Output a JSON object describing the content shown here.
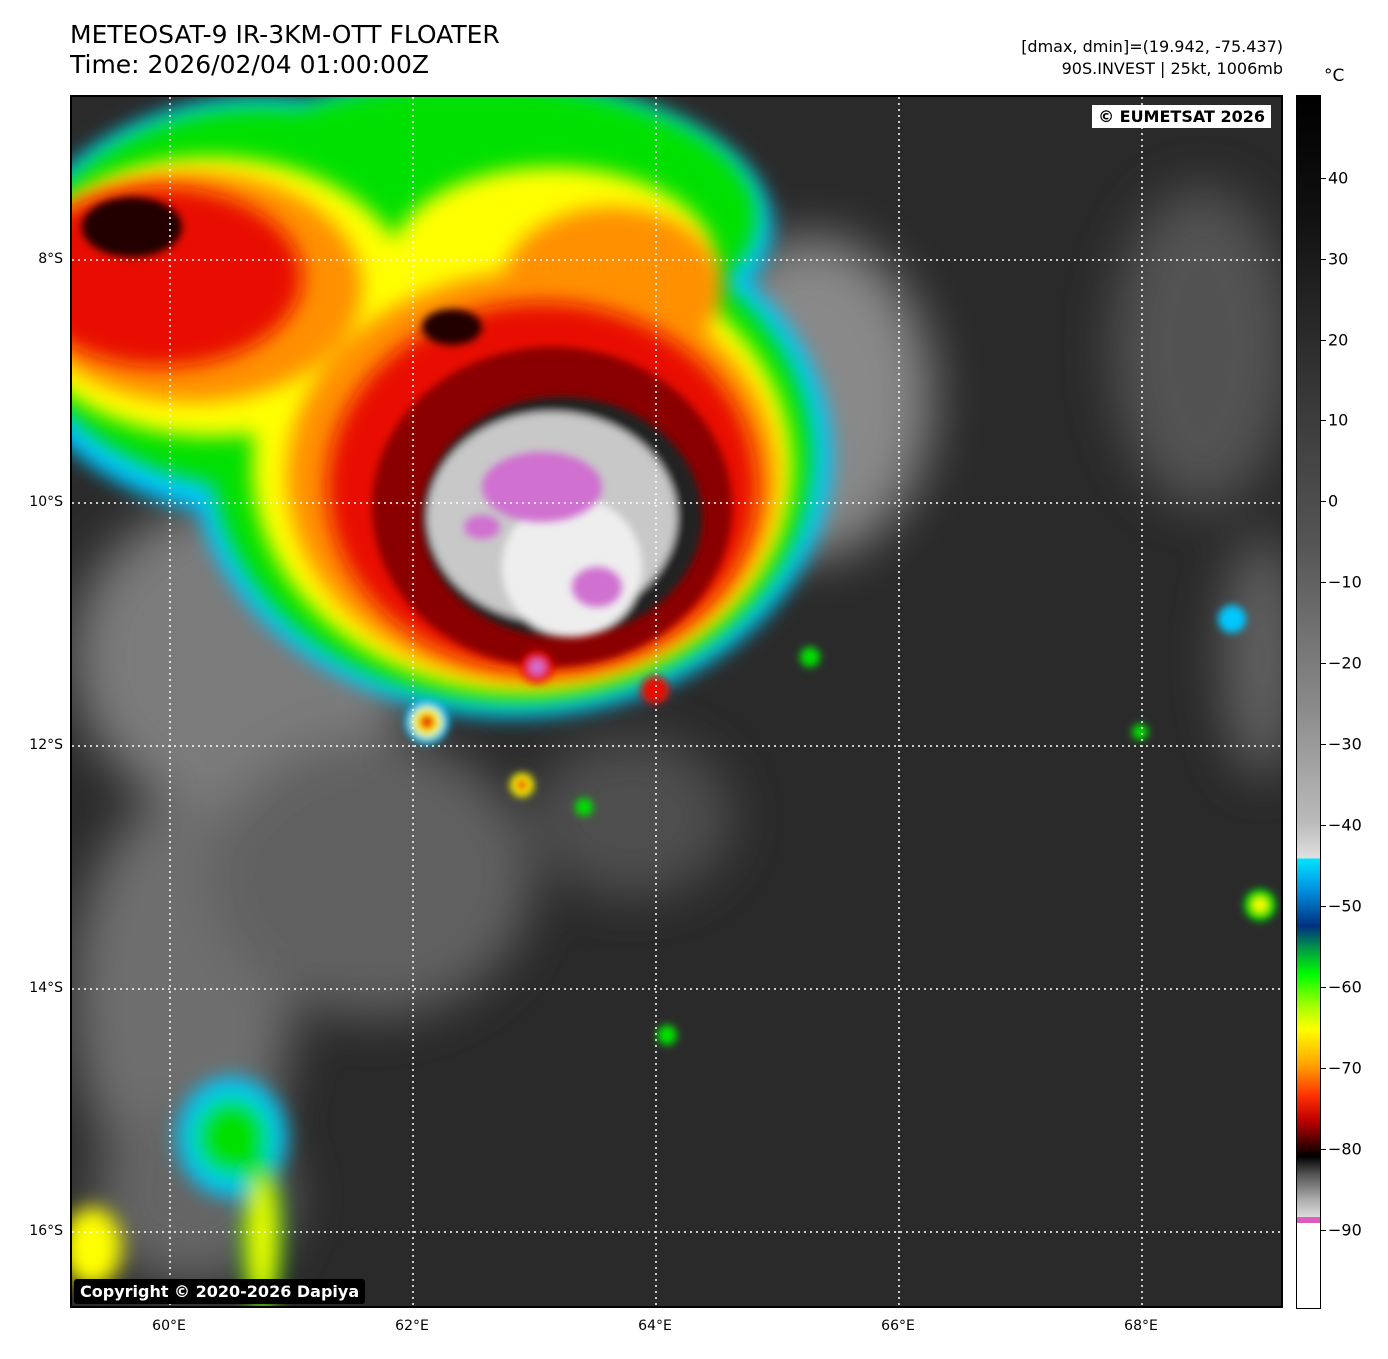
{
  "title": {
    "line1": "METEOSAT-9 IR-3KM-OTT FLOATER",
    "line2": "Time: 2026/02/04 01:00:00Z"
  },
  "info": {
    "line1": "[dmax, dmin]=(19.942, -75.437)",
    "line2": "90S.INVEST | 25kt, 1006mb"
  },
  "badges": {
    "eumetsat": "© EUMETSAT 2026",
    "copyright": "Copyright © 2020-2026 Dapiya"
  },
  "map": {
    "lat_labels": [
      "8°S",
      "10°S",
      "12°S",
      "14°S",
      "16°S"
    ],
    "lon_labels": [
      "60°E",
      "62°E",
      "64°E",
      "66°E",
      "68°E"
    ]
  },
  "colorbar": {
    "unit": "°C",
    "labels": [
      "40",
      "30",
      "20",
      "10",
      "0",
      "−10",
      "−20",
      "−30",
      "−40",
      "−50",
      "−60",
      "−70",
      "−80",
      "−90"
    ]
  },
  "colors": {
    "cold_core": "#d070d0",
    "ring_red": "#c00000",
    "ring_orange": "#ff8000",
    "ring_yellow": "#ffff00",
    "ring_green": "#00e000",
    "ring_cyan": "#00d0ff",
    "background": "#2a2a2a"
  }
}
